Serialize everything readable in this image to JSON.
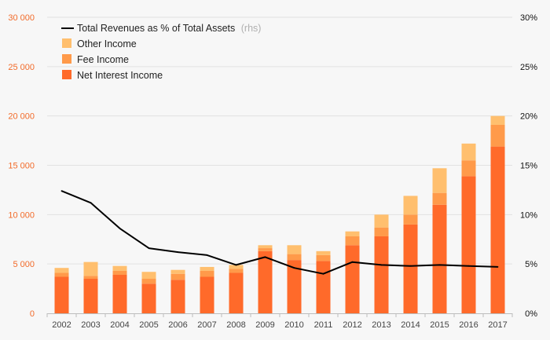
{
  "chart_data": {
    "type": "bar",
    "stacked": true,
    "categories": [
      "2002",
      "2003",
      "2004",
      "2005",
      "2006",
      "2007",
      "2008",
      "2009",
      "2010",
      "2011",
      "2012",
      "2013",
      "2014",
      "2015",
      "2016",
      "2017"
    ],
    "series": [
      {
        "name": "Net Interest Income",
        "axis": "left",
        "color": "#ff6a2a",
        "values": [
          3700,
          3500,
          3900,
          3000,
          3400,
          3700,
          4100,
          6300,
          5400,
          5300,
          6900,
          7800,
          9000,
          11000,
          13900,
          16900
        ]
      },
      {
        "name": "Fee Income",
        "axis": "left",
        "color": "#ff9a4a",
        "values": [
          400,
          300,
          400,
          500,
          600,
          600,
          400,
          300,
          600,
          600,
          900,
          900,
          1000,
          1200,
          1600,
          2200
        ]
      },
      {
        "name": "Other Income",
        "axis": "left",
        "color": "#ffbf6e",
        "values": [
          500,
          1400,
          500,
          700,
          400,
          400,
          400,
          300,
          900,
          400,
          500,
          1300,
          1900,
          2500,
          1700,
          900
        ]
      },
      {
        "name": "Total Revenues as % of Total Assets",
        "name_suffix": "(rhs)",
        "type": "line",
        "axis": "right",
        "color": "#000000",
        "values": [
          12.4,
          11.2,
          8.6,
          6.6,
          6.2,
          5.9,
          4.9,
          5.7,
          4.6,
          4.0,
          5.2,
          4.9,
          4.8,
          4.9,
          4.8,
          4.7
        ]
      }
    ],
    "y_left": {
      "ylim": [
        0,
        30000
      ],
      "ticks": [
        0,
        5000,
        10000,
        15000,
        20000,
        25000,
        30000
      ],
      "tick_labels": [
        "0",
        "5 000",
        "10 000",
        "15 000",
        "20 000",
        "25 000",
        "30 000"
      ],
      "color": "#f26b2a"
    },
    "y_right": {
      "ylim": [
        0,
        30
      ],
      "ticks": [
        0,
        5,
        10,
        15,
        20,
        25,
        30
      ],
      "tick_labels": [
        "0%",
        "5%",
        "10%",
        "15%",
        "20%",
        "25%",
        "30%"
      ]
    },
    "grid": true,
    "legend_position": "top-left"
  }
}
